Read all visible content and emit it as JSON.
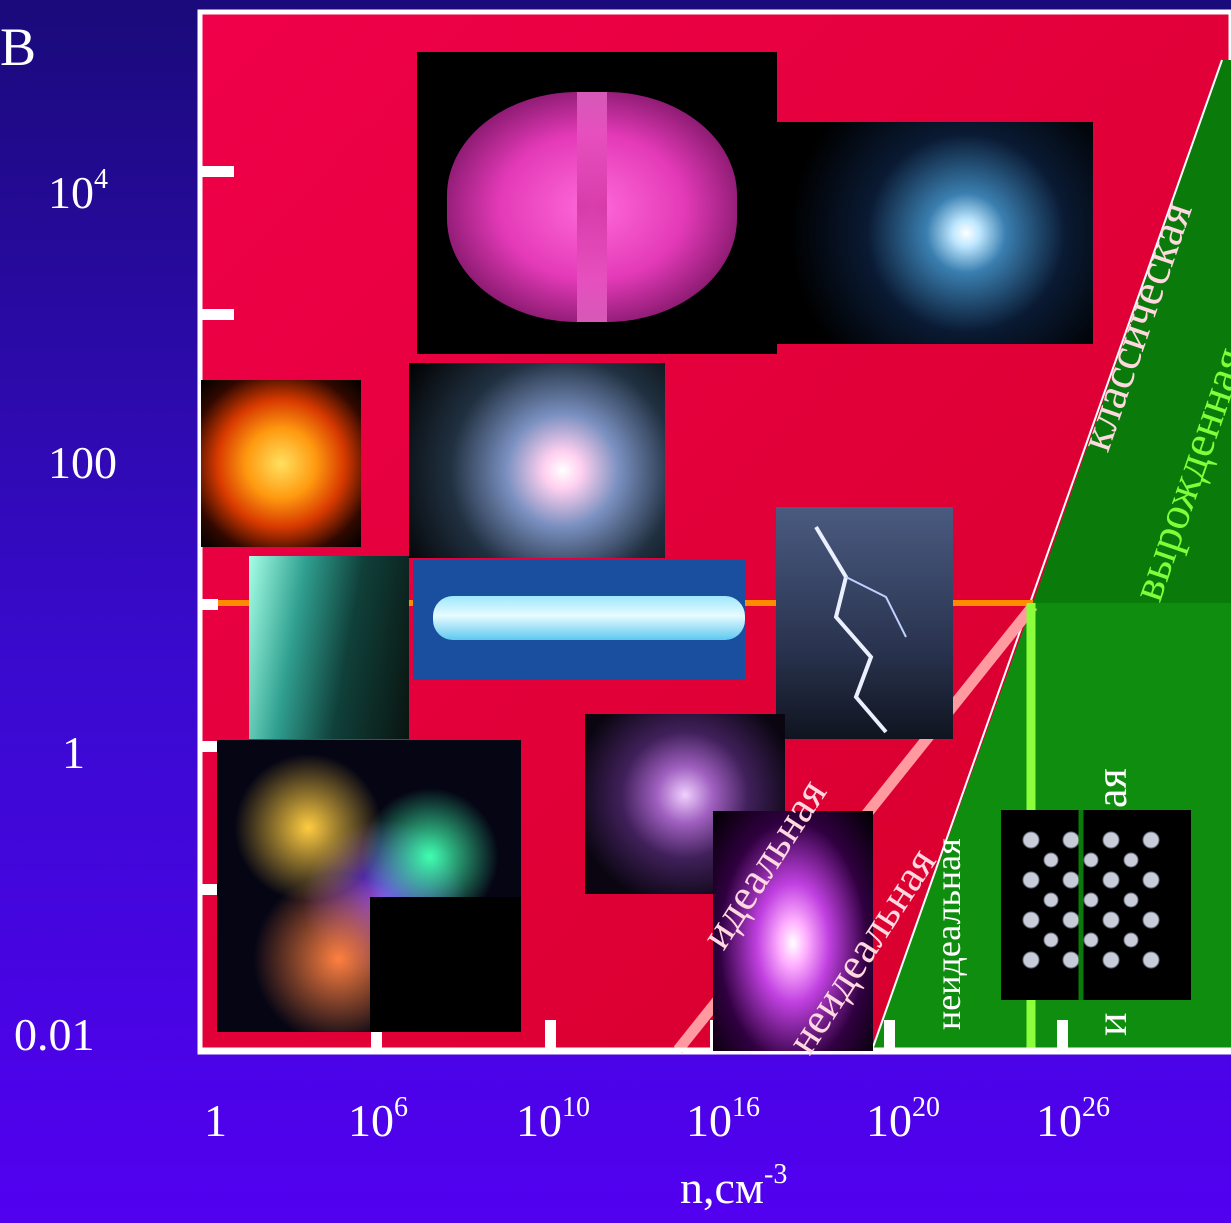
{
  "axis": {
    "y_unit_partial": "В",
    "y_ticks": [
      {
        "base": "10",
        "exp": "4"
      },
      {
        "base": "100",
        "exp": ""
      },
      {
        "base": "1",
        "exp": ""
      },
      {
        "base": "0.01",
        "exp": ""
      }
    ],
    "x_ticks": [
      {
        "base": "1",
        "exp": ""
      },
      {
        "base": "10",
        "exp": "6"
      },
      {
        "base": "10",
        "exp": "10"
      },
      {
        "base": "10",
        "exp": "16"
      },
      {
        "base": "10",
        "exp": "20"
      },
      {
        "base": "10",
        "exp": "26"
      }
    ],
    "x_label": {
      "base": "n,см",
      "exp": "-3"
    }
  },
  "regions": {
    "classical": "классическая",
    "degenerate": "вырожденная",
    "ideal": "идеальная",
    "nonideal": "неидеальная",
    "nonideal_degenerate": "неидеальная",
    "ideal_degenerate_partial": "ая",
    "ideal_degenerate_letter": "и"
  },
  "colors": {
    "plot_red": "#e8003c",
    "plot_green": "#0a7a0a",
    "orange_line": "#ff8c00",
    "pink_line": "#ff9aa0",
    "lime_line": "#8cff3c",
    "lime_text": "#7dff3a"
  },
  "photos": [
    "tokamak-plasma-image",
    "laser-fusion-image",
    "fireball-image",
    "solar-flare-image",
    "aurora-image",
    "fluorescent-tube-image",
    "lightning-image",
    "nebula-image",
    "discharge-lamp-image",
    "glow-discharge-image",
    "crystal-lattice-image"
  ]
}
